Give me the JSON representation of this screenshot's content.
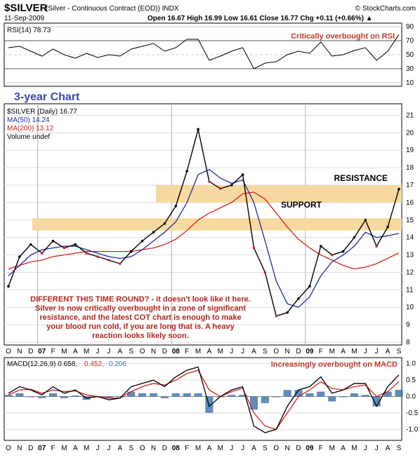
{
  "header": {
    "ticker": "$SILVER",
    "desc": "(Silver - Continuous Contract (EOD)) INDX",
    "site": "© StockCharts.com",
    "date": "11-Sep-2009",
    "quote": "Open 16.67  High 16.99  Low 16.61  Close 16.77  Chg +0.11 (+0.66%) ▲"
  },
  "rsi": {
    "label": "RSI(14) 78.73",
    "note": "Critically overbought on RSI",
    "ticks": [
      "90",
      "70",
      "50",
      "30",
      "10"
    ]
  },
  "price": {
    "chart_label": "3-year Chart",
    "legend": [
      "$SILVER (Daily) 16.77",
      "MA(50) 14.24",
      "MA(200) 13.12",
      "Volume undef"
    ],
    "resistance_label": "RESISTANCE",
    "support_label": "SUPPORT",
    "annotation": [
      "DIFFERENT THIS TIME ROUND? - it doesn't look like it here.",
      "Silver is now critically overbought in a zone of significant",
      "resistance, and the latest COT chart is enough to make",
      "your blood run cold, if you are long that is. A heavy",
      "reaction looks likely soon."
    ],
    "ticks": [
      "21",
      "20",
      "19",
      "18",
      "17",
      "16",
      "15",
      "14",
      "13",
      "12",
      "11",
      "10",
      "9",
      "8"
    ]
  },
  "months": [
    "O",
    "N",
    "D",
    "07",
    "F",
    "M",
    "A",
    "M",
    "J",
    "J",
    "A",
    "S",
    "O",
    "N",
    "D",
    "08",
    "F",
    "M",
    "A",
    "M",
    "J",
    "J",
    "A",
    "S",
    "O",
    "N",
    "D",
    "09",
    "F",
    "M",
    "A",
    "M",
    "J",
    "J",
    "A",
    "S"
  ],
  "macd": {
    "label_main": "MACD(12,26,9) 0.658,",
    "label_signal": "0.452,",
    "label_hist": "0.206",
    "note": "Increasingly overbought on MACD",
    "ticks": [
      "1.0",
      "0.5",
      "0.0",
      "-0.5",
      "-1.0"
    ]
  },
  "colors": {
    "zone": "#f7d9a0",
    "ma50": "#1c2ca6",
    "ma200": "#d32020",
    "hist": "#3a6ea8",
    "price_up": "#000000",
    "price_down": "#cc1f3a"
  },
  "chart_data": {
    "type": "line",
    "title": "$SILVER (Silver - Continuous Contract (EOD)) INDX",
    "x": [
      "2006-10",
      "2006-11",
      "2006-12",
      "2007-01",
      "2007-02",
      "2007-03",
      "2007-04",
      "2007-05",
      "2007-06",
      "2007-07",
      "2007-08",
      "2007-09",
      "2007-10",
      "2007-11",
      "2007-12",
      "2008-01",
      "2008-02",
      "2008-03",
      "2008-04",
      "2008-05",
      "2008-06",
      "2008-07",
      "2008-08",
      "2008-09",
      "2008-10",
      "2008-11",
      "2008-12",
      "2009-01",
      "2009-02",
      "2009-03",
      "2009-04",
      "2009-05",
      "2009-06",
      "2009-07",
      "2009-08",
      "2009-09"
    ],
    "ylim": [
      8,
      21.5
    ],
    "series": [
      {
        "name": "$SILVER",
        "values": [
          11.2,
          12.9,
          13.6,
          13.1,
          13.8,
          13.4,
          13.6,
          13.1,
          12.9,
          12.7,
          12.5,
          13.2,
          13.8,
          14.3,
          14.8,
          15.8,
          17.8,
          20.2,
          17.2,
          16.8,
          17.0,
          17.6,
          13.4,
          12.0,
          9.5,
          9.7,
          10.5,
          11.2,
          13.5,
          13.0,
          13.2,
          14.0,
          15.0,
          13.5,
          14.6,
          16.77
        ]
      },
      {
        "name": "MA(50)",
        "values": [
          11.8,
          12.4,
          13.0,
          13.3,
          13.4,
          13.5,
          13.5,
          13.3,
          13.1,
          12.9,
          12.8,
          12.9,
          13.3,
          13.8,
          14.3,
          14.9,
          16.0,
          17.6,
          17.9,
          17.4,
          17.1,
          17.3,
          16.0,
          13.8,
          11.5,
          10.2,
          10.0,
          10.6,
          11.8,
          12.6,
          13.0,
          13.5,
          14.3,
          14.0,
          14.1,
          14.24
        ]
      },
      {
        "name": "MA(200)",
        "values": [
          12.2,
          12.4,
          12.6,
          12.7,
          12.9,
          13.0,
          13.1,
          13.2,
          13.2,
          13.2,
          13.2,
          13.2,
          13.3,
          13.4,
          13.6,
          13.9,
          14.4,
          15.0,
          15.4,
          15.7,
          16.0,
          16.5,
          16.6,
          16.2,
          15.4,
          14.6,
          13.9,
          13.4,
          13.0,
          12.7,
          12.4,
          12.2,
          12.3,
          12.5,
          12.8,
          13.12
        ]
      }
    ],
    "rsi_values": [
      60,
      62,
      55,
      48,
      58,
      50,
      45,
      52,
      46,
      50,
      48,
      58,
      62,
      66,
      55,
      60,
      72,
      72,
      42,
      48,
      55,
      60,
      30,
      38,
      40,
      50,
      55,
      52,
      68,
      48,
      50,
      56,
      60,
      42,
      55,
      78.73
    ],
    "macd": {
      "line": [
        0.1,
        0.3,
        0.2,
        0.05,
        0.3,
        0.1,
        0.2,
        -0.05,
        0.0,
        -0.1,
        -0.05,
        0.3,
        0.4,
        0.5,
        0.3,
        0.6,
        0.8,
        0.9,
        -0.3,
        0.0,
        0.2,
        0.3,
        -0.9,
        -1.1,
        -1.0,
        -0.3,
        0.2,
        0.3,
        0.6,
        0.1,
        0.2,
        0.4,
        0.4,
        -0.3,
        0.3,
        0.658
      ],
      "signal": [
        0.05,
        0.2,
        0.22,
        0.1,
        0.2,
        0.15,
        0.17,
        0.05,
        0.0,
        -0.05,
        -0.05,
        0.15,
        0.3,
        0.4,
        0.35,
        0.5,
        0.7,
        0.8,
        0.2,
        0.0,
        0.15,
        0.25,
        -0.5,
        -0.9,
        -1.0,
        -0.5,
        0.0,
        0.2,
        0.45,
        0.25,
        0.2,
        0.3,
        0.35,
        0.0,
        0.15,
        0.452
      ]
    },
    "annotations": [
      "RESISTANCE",
      "SUPPORT"
    ]
  }
}
